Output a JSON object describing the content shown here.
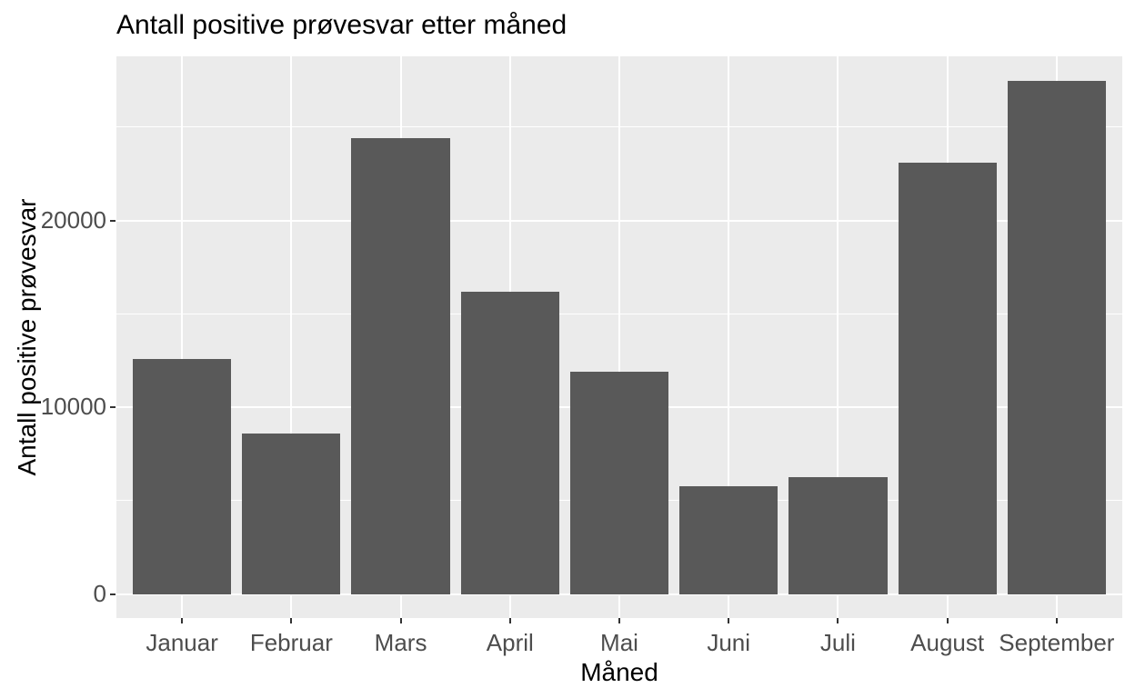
{
  "chart_data": {
    "type": "bar",
    "title": "Antall positive prøvesvar etter måned",
    "xlabel": "Måned",
    "ylabel": "Antall positive prøvesvar",
    "categories": [
      "Januar",
      "Februar",
      "Mars",
      "April",
      "Mai",
      "Juni",
      "Juli",
      "August",
      "September"
    ],
    "values": [
      12600,
      8600,
      24400,
      16200,
      11900,
      5800,
      6300,
      23100,
      27500
    ],
    "ylim": [
      0,
      28800
    ],
    "y_major_ticks": [
      0,
      10000,
      20000
    ],
    "y_tick_labels": [
      "0",
      "10000",
      "20000"
    ],
    "y_minor_gridlines": [
      5000,
      15000,
      25000
    ],
    "grid": "white major and minor horizontal lines, white vertical line at each category center",
    "legend": "none",
    "colors": {
      "bar_fill": "#595959",
      "panel_background": "#EBEBEB",
      "gridline": "#FFFFFF",
      "axis_tick_label": "#4D4D4D",
      "axis_tick_mark": "#333333",
      "title_text": "#000000",
      "plot_background": "#FFFFFF"
    }
  }
}
